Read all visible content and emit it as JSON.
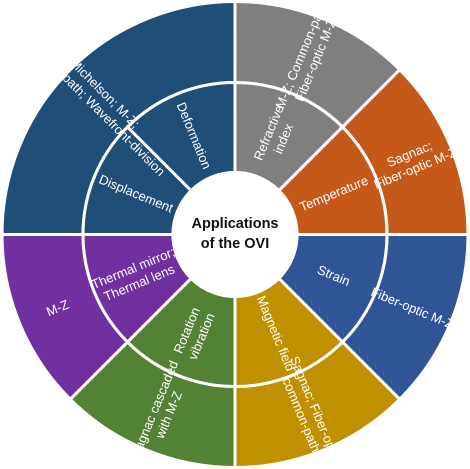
{
  "hub": {
    "line1": "Applications",
    "line2": "of the OVI"
  },
  "sectors": [
    {
      "color": "#7f7f7f",
      "inner": [
        "Refractive",
        "index"
      ],
      "outer": [
        "M-Z; Common-path;",
        "Fiber-optic M-Z"
      ]
    },
    {
      "color": "#c5591a",
      "inner": [
        "Temperature"
      ],
      "outer": [
        "Sagnac;",
        "Fiber-optic M-Z"
      ]
    },
    {
      "color": "#2f5597",
      "inner": [
        "Strain"
      ],
      "outer": [
        "Fiber-optic M-Z"
      ]
    },
    {
      "color": "#bf9000",
      "inner": [
        "Magnetic field"
      ],
      "outer": [
        "Sagnac; Fiber-optic",
        "common-path"
      ]
    },
    {
      "color": "#548235",
      "inner": [
        "Rotation",
        "vibration"
      ],
      "outer": [
        "Sagnac cascaded",
        "with M-Z"
      ]
    },
    {
      "color": "#7030a0",
      "inner": [
        "Thermal mirror;",
        "Thermal lens"
      ],
      "outer": [
        "M-Z"
      ]
    },
    {
      "color": "#1f4e79",
      "inner": [
        "Displacement"
      ],
      "outer": [
        "Michelson; M-Z;",
        "Common-path; Wavefront-division"
      ]
    },
    {
      "color": "#1f4e79",
      "inner": [
        "Deformation"
      ],
      "outer": []
    }
  ]
}
